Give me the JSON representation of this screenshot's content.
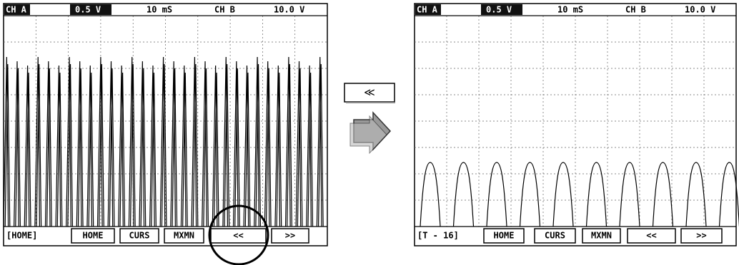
{
  "left_screen": {
    "header": [
      "CH A",
      "0.5 V",
      "10 mS",
      "CH B",
      "10.0 V"
    ],
    "status": "[HOME]",
    "buttons": [
      "HOME",
      "CURS",
      "MXMN",
      "<<",
      ">>"
    ]
  },
  "right_screen": {
    "header": [
      "CH A",
      "0.5 V",
      "10 mS",
      "CH B",
      "10.0 V"
    ],
    "status": "[T - 16]",
    "buttons": [
      "HOME",
      "CURS",
      "MXMN",
      "<<",
      ">>"
    ]
  },
  "scroll_button": "≪"
}
